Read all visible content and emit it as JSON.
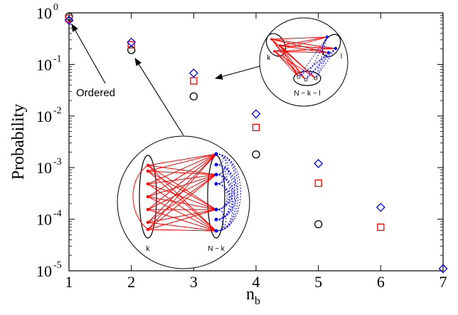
{
  "chart_data": {
    "type": "scatter",
    "title": "",
    "xlabel": "n",
    "xlabel_subscript": "b",
    "ylabel": "Probability",
    "xlim": [
      1,
      7
    ],
    "ylim": [
      1e-05,
      1
    ],
    "yscale": "log",
    "grid": false,
    "x_ticks": [
      "1",
      "2",
      "3",
      "4",
      "5",
      "6",
      "7"
    ],
    "y_ticks": [
      {
        "value": 1,
        "base": "10",
        "exp": "0"
      },
      {
        "value": 0.1,
        "base": "10",
        "exp": "-1"
      },
      {
        "value": 0.01,
        "base": "10",
        "exp": "-2"
      },
      {
        "value": 0.001,
        "base": "10",
        "exp": "-3"
      },
      {
        "value": 0.0001,
        "base": "10",
        "exp": "-4"
      },
      {
        "value": 1e-05,
        "base": "10",
        "exp": "-5"
      }
    ],
    "series": [
      {
        "marker": "circle",
        "color": "#000000",
        "points": [
          [
            1,
            0.85
          ],
          [
            2,
            0.19
          ],
          [
            3,
            0.024
          ],
          [
            4,
            0.0018
          ],
          [
            5,
            8e-05
          ]
        ]
      },
      {
        "marker": "square",
        "color": "#ff0000",
        "points": [
          [
            1,
            0.78
          ],
          [
            2,
            0.24
          ],
          [
            3,
            0.048
          ],
          [
            4,
            0.006
          ],
          [
            5,
            0.0005
          ],
          [
            6,
            7e-05
          ]
        ]
      },
      {
        "marker": "diamond",
        "color": "#0000ff",
        "points": [
          [
            1,
            0.72
          ],
          [
            2,
            0.27
          ],
          [
            3,
            0.068
          ],
          [
            4,
            0.011
          ],
          [
            5,
            0.0012
          ],
          [
            6,
            0.00017
          ],
          [
            7,
            1.1e-05
          ]
        ]
      }
    ],
    "annotations": [
      {
        "text": "Ordered"
      }
    ],
    "insets": [
      {
        "left_label": "k",
        "right_label": "N − k"
      },
      {
        "left_label": "k",
        "right_label": "l",
        "bottom_label": "N − k − l"
      }
    ]
  }
}
